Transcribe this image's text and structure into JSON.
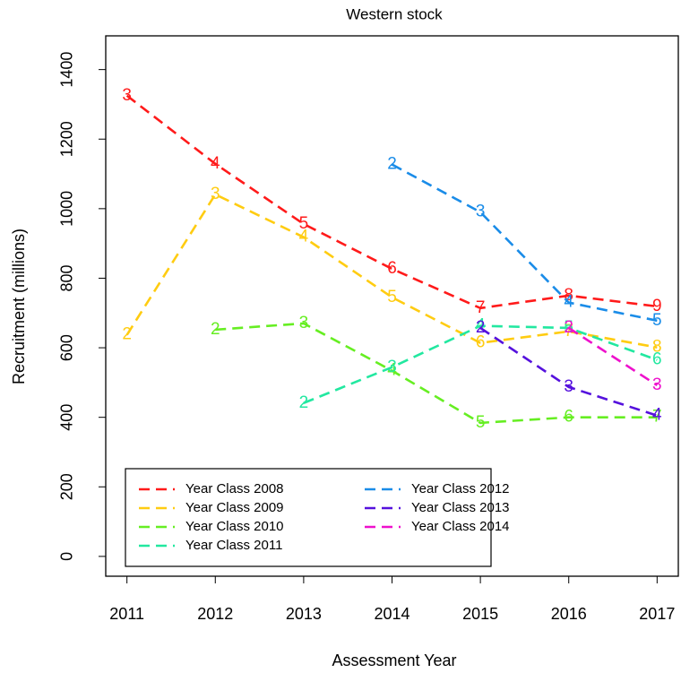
{
  "chart_data": {
    "type": "line",
    "title": "Western stock",
    "x_label": "Assessment Year",
    "y_label": "Recruitment (millions)",
    "x": [
      2011,
      2012,
      2013,
      2014,
      2015,
      2016,
      2017
    ],
    "xlim": [
      2010.76,
      2017.24
    ],
    "xticks": [
      2011,
      2012,
      2013,
      2014,
      2015,
      2016,
      2017
    ],
    "ylim": [
      -57,
      1497
    ],
    "yticks": [
      0,
      200,
      400,
      600,
      800,
      1000,
      1200,
      1400
    ],
    "legend": "bottom-left",
    "series": [
      {
        "name": "Year Class 2008",
        "color": "#ff1a1a",
        "values": [
          1325,
          1129,
          956,
          827,
          714,
          750,
          719
        ],
        "point_labels": [
          "3",
          "4",
          "5",
          "6",
          "7",
          "8",
          "9"
        ]
      },
      {
        "name": "Year Class 2009",
        "color": "#ffcc11",
        "values": [
          637,
          1041,
          918,
          745,
          614,
          647,
          601
        ],
        "point_labels": [
          "2",
          "3",
          "4",
          "5",
          "6",
          "7",
          "8"
        ]
      },
      {
        "name": "Year Class 2010",
        "color": "#66ee22",
        "values": [
          null,
          652,
          670,
          534,
          384,
          400,
          400
        ],
        "point_labels": [
          null,
          "2",
          "3",
          "4",
          "5",
          "6",
          "7"
        ]
      },
      {
        "name": "Year Class 2011",
        "color": "#22e8a0",
        "values": [
          null,
          null,
          441,
          544,
          663,
          657,
          565
        ],
        "point_labels": [
          null,
          null,
          "2",
          "3",
          "4",
          "5",
          "6"
        ]
      },
      {
        "name": "Year Class 2012",
        "color": "#1a8ce8",
        "values": [
          null,
          null,
          null,
          1127,
          990,
          730,
          678
        ],
        "point_labels": [
          null,
          null,
          null,
          "2",
          "3",
          "4",
          "5"
        ]
      },
      {
        "name": "Year Class 2013",
        "color": "#5511dd",
        "values": [
          null,
          null,
          null,
          null,
          657,
          487,
          405
        ],
        "point_labels": [
          null,
          null,
          null,
          null,
          "2",
          "3",
          "4"
        ]
      },
      {
        "name": "Year Class 2014",
        "color": "#ee11cc",
        "values": [
          null,
          null,
          null,
          null,
          null,
          657,
          492
        ],
        "point_labels": [
          null,
          null,
          null,
          null,
          null,
          "2",
          "3"
        ]
      }
    ]
  }
}
